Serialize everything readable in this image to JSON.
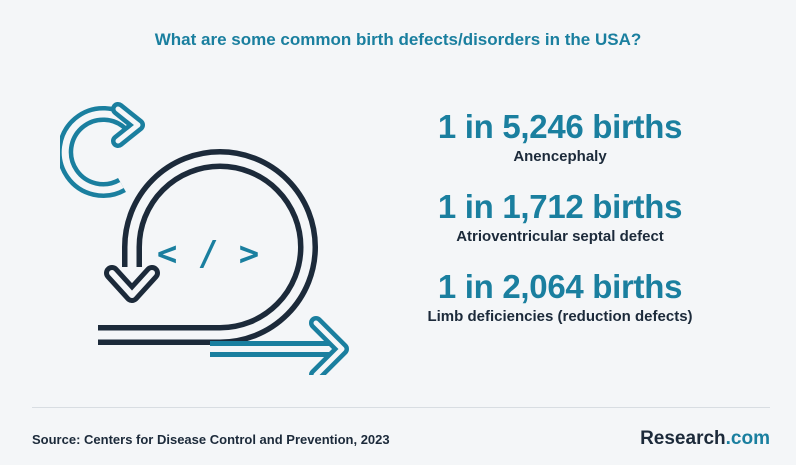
{
  "title": "What are some common birth defects/disorders in the USA?",
  "stats": [
    {
      "value": "1 in 5,246 births",
      "label": "Anencephaly"
    },
    {
      "value": "1 in 1,712 births",
      "label": "Atrioventricular septal defect"
    },
    {
      "value": "1 in 2,064 births",
      "label": "Limb deficiencies (reduction defects)"
    }
  ],
  "illustration": {
    "code_glyph": "< / >"
  },
  "source": "Source:  Centers for Disease Control and Prevention, 2023",
  "logo": {
    "main": "Research",
    "tld": ".com"
  },
  "colors": {
    "accent": "#1a7f9f",
    "dark": "#1c2a3a",
    "background": "#f4f6f8"
  }
}
